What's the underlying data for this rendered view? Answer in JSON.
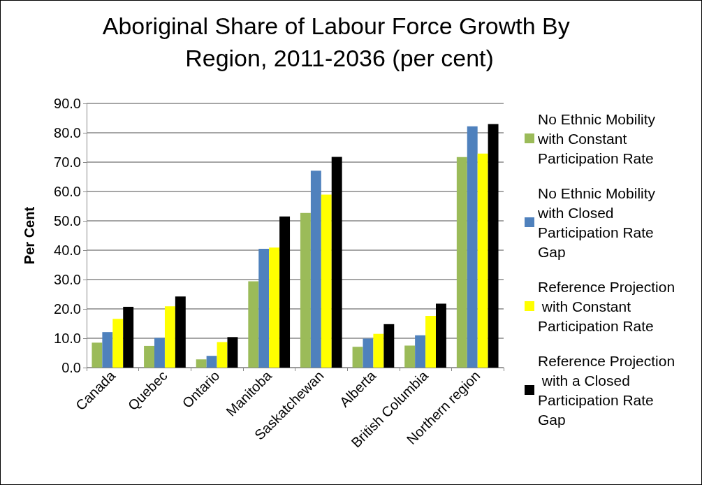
{
  "chart_data": {
    "type": "bar",
    "title": "Aboriginal Share of Labour Force Growth By Region, 2011-2036 (per cent)",
    "ylabel": "Per Cent",
    "categories": [
      "Canada",
      "Quebec",
      "Ontario",
      "Manitoba",
      "Saskatchewan",
      "Alberta",
      "British Columbia",
      "Northern region"
    ],
    "series": [
      {
        "name": "No Ethnic Mobility with Constant Participation Rate",
        "color": "#9bbb59",
        "values": [
          8.5,
          7.4,
          2.8,
          29.4,
          52.7,
          7.1,
          7.5,
          71.7
        ]
      },
      {
        "name": "No Ethnic Mobility with Closed Participation Rate Gap",
        "color": "#4f81bd",
        "values": [
          12.1,
          10.1,
          4.0,
          40.5,
          67.1,
          9.9,
          11.0,
          82.2
        ]
      },
      {
        "name": "Reference Projection with Constant Participation Rate",
        "color": "#ffff00",
        "values": [
          16.6,
          20.9,
          8.7,
          40.9,
          58.9,
          11.5,
          17.6,
          72.9
        ]
      },
      {
        "name": "Reference Projection with a Closed Participation Rate Gap",
        "color": "#000000",
        "values": [
          20.7,
          24.2,
          10.4,
          51.5,
          71.8,
          14.8,
          21.8,
          83.0
        ]
      }
    ],
    "ylim": [
      0,
      90
    ],
    "yticks": [
      {
        "value": 0,
        "label": "0.0"
      },
      {
        "value": 10,
        "label": "10.0"
      },
      {
        "value": 20,
        "label": "20.0"
      },
      {
        "value": 30,
        "label": "30.0"
      },
      {
        "value": 40,
        "label": "40.0"
      },
      {
        "value": 50,
        "label": "50.0"
      },
      {
        "value": 60,
        "label": "60.0"
      },
      {
        "value": 70,
        "label": "70.0"
      },
      {
        "value": 80,
        "label": "80.0"
      },
      {
        "value": 90,
        "label": "90.0"
      }
    ],
    "grid": "y",
    "legend": "right"
  }
}
